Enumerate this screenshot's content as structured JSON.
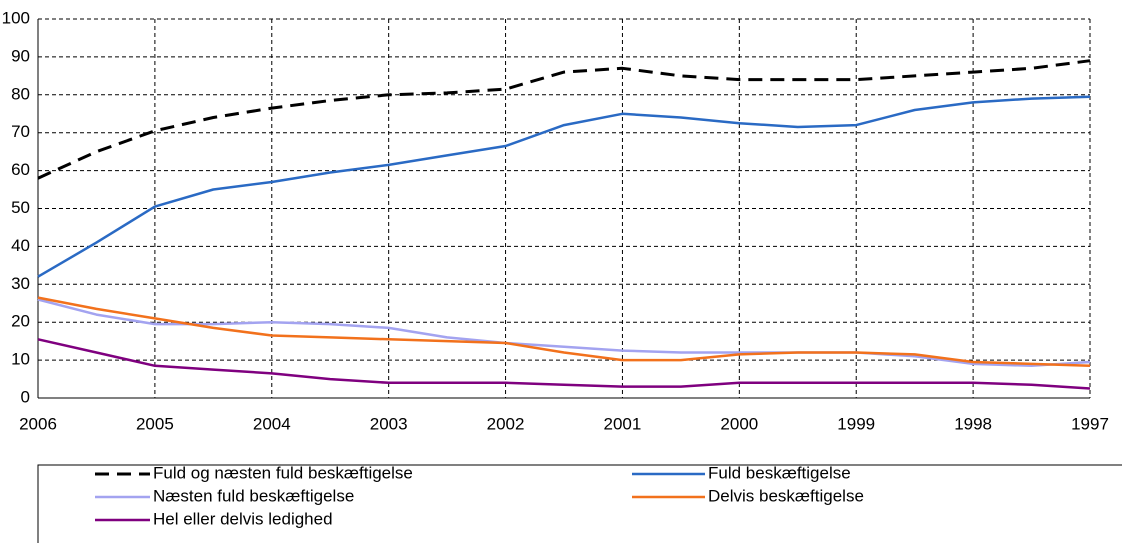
{
  "chart_data": {
    "type": "line",
    "x": [
      2006,
      2005.5,
      2005,
      2004.5,
      2004,
      2003.5,
      2003,
      2002.5,
      2002,
      2001.5,
      2001,
      2000.5,
      2000,
      1999.5,
      1999,
      1998.5,
      1998,
      1997.5,
      1997
    ],
    "xlim": [
      2006,
      1997
    ],
    "xticks": [
      2006,
      2005,
      2004,
      2003,
      2002,
      2001,
      2000,
      1999,
      1998,
      1997
    ],
    "ylim": [
      0,
      100
    ],
    "yticks": [
      0,
      10,
      20,
      30,
      40,
      50,
      60,
      70,
      80,
      90,
      100
    ],
    "grid": true,
    "legend": "bottom",
    "series": [
      {
        "name": "Fuld og næsten fuld beskæftigelse",
        "color": "#000000",
        "style": "dashed",
        "values": [
          58,
          65,
          70.5,
          74,
          76.5,
          78.5,
          80,
          80.5,
          81.5,
          86,
          87,
          85,
          84,
          84,
          84,
          85,
          86,
          87,
          89
        ]
      },
      {
        "name": "Fuld beskæftigelse",
        "color": "#2a6ac4",
        "style": "solid",
        "values": [
          32,
          41,
          50.5,
          55,
          57,
          59.5,
          61.5,
          64,
          66.5,
          72,
          75,
          74,
          72.5,
          71.5,
          72,
          76,
          78,
          79,
          79.5
        ]
      },
      {
        "name": "Næsten fuld beskæftigelse",
        "color": "#a3a3f0",
        "style": "solid",
        "values": [
          26,
          22,
          19.5,
          19.5,
          20,
          19.5,
          18.5,
          16,
          14.5,
          13.5,
          12.5,
          12,
          12,
          12,
          12,
          11,
          9,
          8.5,
          9.5
        ]
      },
      {
        "name": "Delvis beskæftigelse",
        "color": "#f2711c",
        "style": "solid",
        "values": [
          26.5,
          23.5,
          21,
          18.5,
          16.5,
          16,
          15.5,
          15,
          14.5,
          12,
          10,
          10,
          11.5,
          12,
          12,
          11.5,
          9.5,
          9,
          8.5
        ]
      },
      {
        "name": "Hel eller delvis ledighed",
        "color": "#7f007f",
        "style": "solid",
        "values": [
          15.5,
          12,
          8.5,
          7.5,
          6.5,
          5,
          4,
          4,
          4,
          3.5,
          3,
          3,
          4,
          4,
          4,
          4,
          4,
          3.5,
          2.5
        ]
      }
    ]
  }
}
